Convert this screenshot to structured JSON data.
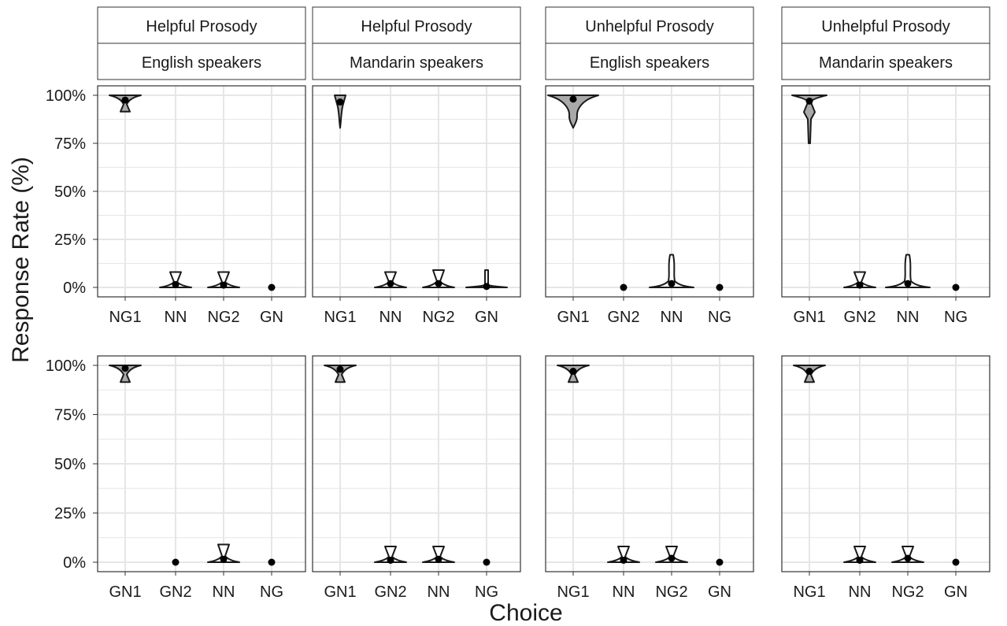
{
  "chart_data": {
    "type": "violin",
    "xlabel": "Choice",
    "ylabel": "Response Rate (%)",
    "ylim": [
      0,
      100
    ],
    "y_ticks": [
      "0%",
      "25%",
      "50%",
      "75%",
      "100%"
    ],
    "grid": true,
    "legend": "none",
    "colors": {
      "violin_fill_primary": "#a9a9a9",
      "violin_fill_other": "#ffffff",
      "outline": "#1a1a1a",
      "grid": "#e6e6e6",
      "strip": "#ffffff",
      "point": "#000000"
    },
    "panels": [
      {
        "strips": [
          "Helpful Prosody",
          "English speakers"
        ],
        "categories": [
          "NG1",
          "NN",
          "NG2",
          "GN"
        ],
        "violins": [
          {
            "category": "NG1",
            "mean": 97.5,
            "min": 91.5,
            "max": 100,
            "shape": "tri_top",
            "fill": "primary"
          },
          {
            "category": "NN",
            "mean": 1.5,
            "min": 0,
            "max": 8,
            "shape": "tri_bottom",
            "fill": "other"
          },
          {
            "category": "NG2",
            "mean": 1.2,
            "min": 0,
            "max": 8,
            "shape": "tri_bottom",
            "fill": "other"
          },
          {
            "category": "GN",
            "mean": 0,
            "min": 0,
            "max": 0,
            "shape": "none",
            "fill": "other"
          }
        ]
      },
      {
        "strips": [
          "Helpful Prosody",
          "Mandarin speakers"
        ],
        "categories": [
          "NG1",
          "NN",
          "NG2",
          "GN"
        ],
        "violins": [
          {
            "category": "NG1",
            "mean": 96.5,
            "min": 83,
            "max": 100,
            "shape": "thin_top",
            "fill": "primary"
          },
          {
            "category": "NN",
            "mean": 2,
            "min": 0,
            "max": 8,
            "shape": "tri_bottom",
            "fill": "other"
          },
          {
            "category": "NG2",
            "mean": 2,
            "min": 0,
            "max": 9,
            "shape": "tri_bottom",
            "fill": "other"
          },
          {
            "category": "GN",
            "mean": 0.5,
            "min": 0,
            "max": 9,
            "shape": "spike",
            "fill": "other"
          }
        ]
      },
      {
        "strips": [
          "Unhelpful Prosody",
          "English speakers"
        ],
        "categories": [
          "GN1",
          "GN2",
          "NN",
          "NG"
        ],
        "violins": [
          {
            "category": "GN1",
            "mean": 98,
            "min": 83,
            "max": 100,
            "shape": "wide_top",
            "fill": "primary"
          },
          {
            "category": "GN2",
            "mean": 0,
            "min": 0,
            "max": 0,
            "shape": "none",
            "fill": "other"
          },
          {
            "category": "NN",
            "mean": 2,
            "min": 0,
            "max": 17,
            "shape": "tall_bottom",
            "fill": "other"
          },
          {
            "category": "NG",
            "mean": 0,
            "min": 0,
            "max": 0,
            "shape": "none",
            "fill": "other"
          }
        ]
      },
      {
        "strips": [
          "Unhelpful Prosody",
          "Mandarin speakers"
        ],
        "categories": [
          "GN1",
          "GN2",
          "NN",
          "NG"
        ],
        "violins": [
          {
            "category": "GN1",
            "mean": 97,
            "min": 75,
            "max": 100,
            "shape": "diamond_top",
            "fill": "primary"
          },
          {
            "category": "GN2",
            "mean": 1.2,
            "min": 0,
            "max": 8,
            "shape": "tri_bottom",
            "fill": "other"
          },
          {
            "category": "NN",
            "mean": 2,
            "min": 0,
            "max": 17,
            "shape": "tall_bottom",
            "fill": "other"
          },
          {
            "category": "NG",
            "mean": 0,
            "min": 0,
            "max": 0,
            "shape": "none",
            "fill": "other"
          }
        ]
      },
      {
        "strips": [],
        "categories": [
          "GN1",
          "GN2",
          "NN",
          "NG"
        ],
        "violins": [
          {
            "category": "GN1",
            "mean": 98.5,
            "min": 91.5,
            "max": 100,
            "shape": "tri_top",
            "fill": "primary"
          },
          {
            "category": "GN2",
            "mean": 0,
            "min": 0,
            "max": 0,
            "shape": "none",
            "fill": "other"
          },
          {
            "category": "NN",
            "mean": 1.5,
            "min": 0,
            "max": 9,
            "shape": "tri_bottom",
            "fill": "other"
          },
          {
            "category": "NG",
            "mean": 0,
            "min": 0,
            "max": 0,
            "shape": "none",
            "fill": "other"
          }
        ]
      },
      {
        "strips": [],
        "categories": [
          "GN1",
          "GN2",
          "NN",
          "NG"
        ],
        "violins": [
          {
            "category": "GN1",
            "mean": 98,
            "min": 91.5,
            "max": 100,
            "shape": "tri_top",
            "fill": "primary"
          },
          {
            "category": "GN2",
            "mean": 1,
            "min": 0,
            "max": 8,
            "shape": "tri_bottom",
            "fill": "other"
          },
          {
            "category": "NN",
            "mean": 1.5,
            "min": 0,
            "max": 8,
            "shape": "tri_bottom",
            "fill": "other"
          },
          {
            "category": "NG",
            "mean": 0,
            "min": 0,
            "max": 0,
            "shape": "none",
            "fill": "other"
          }
        ]
      },
      {
        "strips": [],
        "categories": [
          "NG1",
          "NN",
          "NG2",
          "GN"
        ],
        "violins": [
          {
            "category": "NG1",
            "mean": 97,
            "min": 91.5,
            "max": 100,
            "shape": "tri_top",
            "fill": "primary"
          },
          {
            "category": "NN",
            "mean": 1,
            "min": 0,
            "max": 8,
            "shape": "tri_bottom",
            "fill": "other"
          },
          {
            "category": "NG2",
            "mean": 2,
            "min": 0,
            "max": 8,
            "shape": "tri_bottom",
            "fill": "other"
          },
          {
            "category": "GN",
            "mean": 0,
            "min": 0,
            "max": 0,
            "shape": "none",
            "fill": "other"
          }
        ]
      },
      {
        "strips": [],
        "categories": [
          "NG1",
          "NN",
          "NG2",
          "GN"
        ],
        "violins": [
          {
            "category": "NG1",
            "mean": 97,
            "min": 91.5,
            "max": 100,
            "shape": "tri_top",
            "fill": "primary"
          },
          {
            "category": "NN",
            "mean": 1,
            "min": 0,
            "max": 8,
            "shape": "tri_bottom",
            "fill": "other"
          },
          {
            "category": "NG2",
            "mean": 2,
            "min": 0,
            "max": 8,
            "shape": "tri_bottom",
            "fill": "other"
          },
          {
            "category": "GN",
            "mean": 0,
            "min": 0,
            "max": 0,
            "shape": "none",
            "fill": "other"
          }
        ]
      }
    ]
  }
}
